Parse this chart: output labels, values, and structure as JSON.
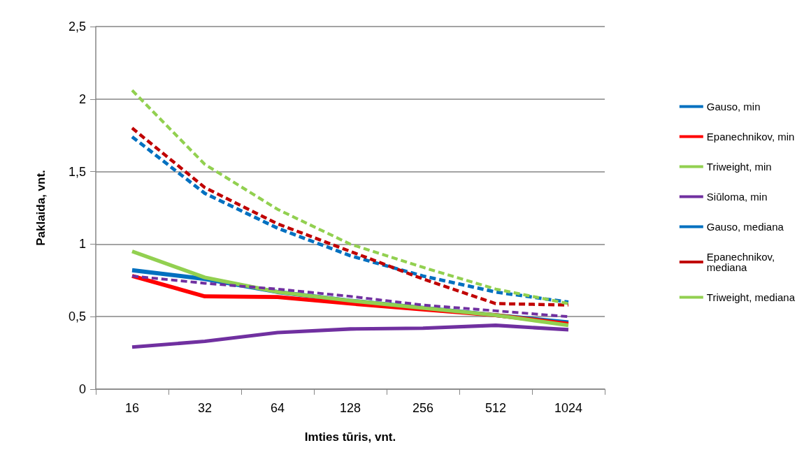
{
  "chart_data": {
    "type": "line",
    "xlabel": "Imties tūris, vnt.",
    "ylabel": "Paklaida, vnt.",
    "categories": [
      "16",
      "32",
      "64",
      "128",
      "256",
      "512",
      "1024"
    ],
    "ylim": [
      0,
      2.5
    ],
    "yticks": [
      0,
      {
        "value": 0.5,
        "label": "0,5"
      },
      1,
      {
        "value": 1.5,
        "label": "1,5"
      },
      2,
      {
        "value": 2.5,
        "label": "2,5"
      }
    ],
    "grid": "y",
    "legend": "right",
    "marker": "none",
    "series": [
      {
        "name": "Gauso, min",
        "color": "#0070c0",
        "line_style": "solid",
        "values": [
          0.82,
          0.76,
          0.67,
          0.61,
          0.56,
          0.51,
          0.46
        ]
      },
      {
        "name": "Epanechnikov, min",
        "color": "#ff0000",
        "line_style": "solid",
        "values": [
          0.78,
          0.64,
          0.635,
          0.59,
          0.55,
          0.51,
          0.45
        ]
      },
      {
        "name": "Triweight, min",
        "color": "#92d050",
        "line_style": "solid",
        "values": [
          0.95,
          0.77,
          0.67,
          0.61,
          0.56,
          0.51,
          0.44
        ]
      },
      {
        "name": "Siūloma, min",
        "color": "#7030a0",
        "line_style": "solid",
        "values": [
          0.29,
          0.33,
          0.39,
          0.415,
          0.42,
          0.44,
          0.41
        ]
      },
      {
        "name": "Gauso, mediana",
        "color": "#0070c0",
        "line_style": "dashed",
        "values": [
          1.74,
          1.35,
          1.11,
          0.92,
          0.78,
          0.67,
          0.6
        ]
      },
      {
        "name": "Epanechnikov, mediana",
        "color": "#c00000",
        "line_style": "dashed",
        "values": [
          1.8,
          1.39,
          1.14,
          0.95,
          0.76,
          0.59,
          0.58
        ]
      },
      {
        "name": "Triweight, mediana",
        "color": "#92d050",
        "line_style": "dashed",
        "values": [
          2.06,
          1.55,
          1.24,
          1,
          0.84,
          0.69,
          0.59
        ]
      },
      {
        "color": "#7030a0",
        "line_style": "dashed",
        "values": [
          0.78,
          0.73,
          0.69,
          0.64,
          0.58,
          0.54,
          0.5
        ]
      }
    ]
  }
}
